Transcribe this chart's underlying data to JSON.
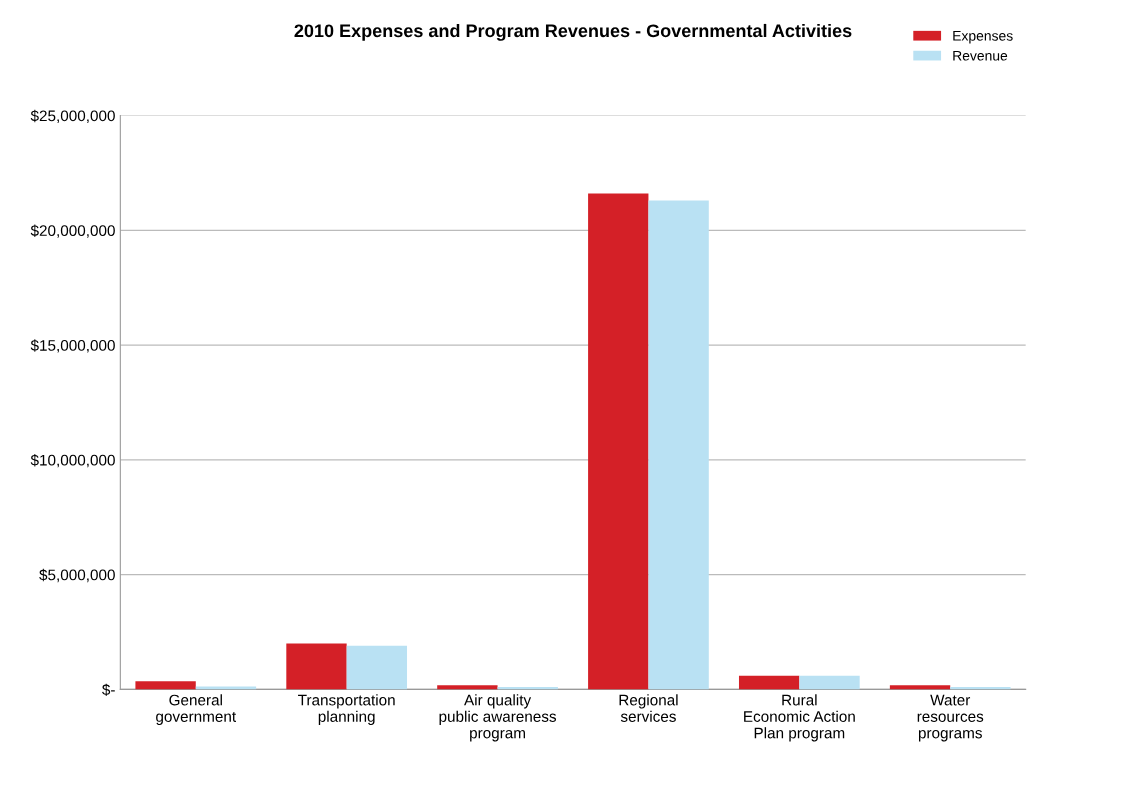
{
  "chart_data": {
    "type": "bar",
    "title": "2010 Expenses and Program Revenues - Governmental Activities",
    "categories": [
      "General\ngovernment",
      "Transportation\nplanning",
      "Air quality\npublic awareness\nprogram",
      "Regional\nservices",
      "Rural\nEconomic Action\nPlan program",
      "Water\nresources\nprograms"
    ],
    "series": [
      {
        "name": "Expenses",
        "color": "#d42027",
        "values": [
          350000,
          2000000,
          180000,
          21600000,
          600000,
          180000
        ]
      },
      {
        "name": "Revenue",
        "color": "#b9e1f3",
        "values": [
          130000,
          1900000,
          100000,
          21300000,
          600000,
          100000
        ]
      }
    ],
    "ylim": [
      0,
      25000000
    ],
    "yticks": [
      {
        "value": 0,
        "label": "$-"
      },
      {
        "value": 5000000,
        "label": "$5,000,000"
      },
      {
        "value": 10000000,
        "label": "$10,000,000"
      },
      {
        "value": 15000000,
        "label": "$15,000,000"
      },
      {
        "value": 20000000,
        "label": "$20,000,000"
      },
      {
        "value": 25000000,
        "label": "$25,000,000"
      }
    ],
    "grid": "y",
    "legend": "top right"
  }
}
